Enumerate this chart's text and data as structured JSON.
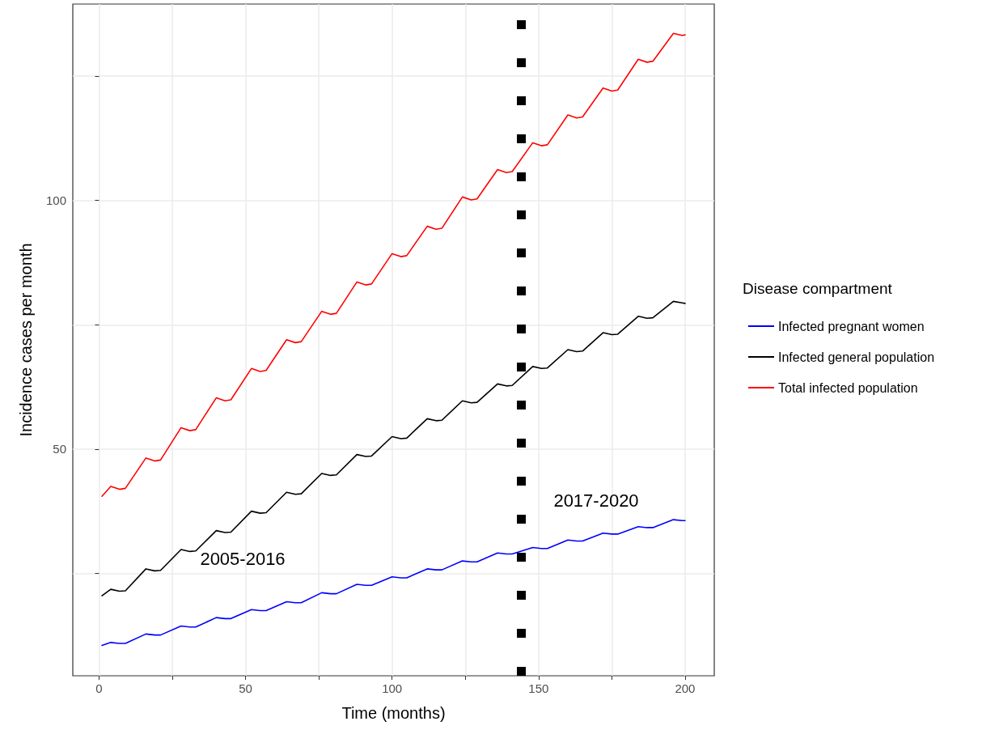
{
  "chart_data": {
    "type": "line",
    "xlabel": "Time (months)",
    "ylabel": "Incidence cases per month",
    "legend_title": "Disease compartment",
    "x": [
      1,
      4,
      7,
      9,
      16,
      19,
      21,
      28,
      31,
      33,
      40,
      43,
      45,
      52,
      55,
      57,
      64,
      67,
      69,
      76,
      79,
      81,
      88,
      91,
      93,
      100,
      103,
      105,
      112,
      115,
      117,
      124,
      127,
      129,
      136,
      139,
      141,
      148,
      151,
      153,
      160,
      163,
      165,
      172,
      175,
      177,
      184,
      187,
      189,
      196,
      199,
      200
    ],
    "series": [
      {
        "name": "Infected pregnant women",
        "color": "#0000ff",
        "values": [
          10.5,
          11.1,
          10.9,
          10.9,
          12.8,
          12.6,
          12.6,
          14.4,
          14.2,
          14.2,
          16.1,
          15.9,
          15.9,
          17.7,
          17.5,
          17.5,
          19.3,
          19.1,
          19.1,
          21.1,
          20.9,
          20.9,
          22.8,
          22.6,
          22.6,
          24.3,
          24.1,
          24.1,
          25.9,
          25.7,
          25.7,
          27.5,
          27.3,
          27.3,
          29.1,
          28.9,
          28.9,
          30.2,
          30,
          30,
          31.7,
          31.5,
          31.5,
          33.1,
          32.9,
          32.9,
          34.4,
          34.2,
          34.2,
          35.8,
          35.6,
          35.6
        ]
      },
      {
        "name": "Infected general population",
        "color": "#000000",
        "values": [
          20.5,
          21.8,
          21.4,
          21.5,
          25.9,
          25.5,
          25.6,
          29.8,
          29.4,
          29.5,
          33.6,
          33.2,
          33.3,
          37.5,
          37.1,
          37.2,
          41.3,
          40.9,
          41,
          45.1,
          44.7,
          44.8,
          48.9,
          48.5,
          48.6,
          52.5,
          52.1,
          52.2,
          56.1,
          55.7,
          55.8,
          59.7,
          59.3,
          59.4,
          63.1,
          62.7,
          62.8,
          66.6,
          66.2,
          66.3,
          70,
          69.6,
          69.7,
          73.4,
          73,
          73.1,
          76.7,
          76.3,
          76.4,
          79.7,
          79.4,
          79.3
        ]
      },
      {
        "name": "Total infected population",
        "color": "#ff0000",
        "values": [
          40.5,
          42.5,
          41.9,
          42.1,
          48.2,
          47.6,
          47.8,
          54.3,
          53.7,
          53.9,
          60.3,
          59.7,
          59.9,
          66.2,
          65.6,
          65.8,
          72,
          71.4,
          71.6,
          77.7,
          77.1,
          77.3,
          83.6,
          83,
          83.2,
          89.3,
          88.7,
          88.9,
          94.8,
          94.2,
          94.4,
          100.7,
          100.1,
          100.3,
          106.2,
          105.6,
          105.8,
          111.6,
          111,
          111.2,
          117.2,
          116.6,
          116.8,
          122.6,
          122,
          122.2,
          128.4,
          127.8,
          128,
          133.6,
          133.2,
          133.3
        ]
      }
    ],
    "xlim": [
      -8.95,
      209.95
    ],
    "xticks": [
      0,
      {
        "value": 25,
        "label": null
      },
      50,
      {
        "value": 75,
        "label": null
      },
      100,
      {
        "value": 125,
        "label": null
      },
      150,
      {
        "value": 175,
        "label": null
      },
      200
    ],
    "ylim": [
      4.4,
      139.5
    ],
    "yticks": [
      {
        "value": 25,
        "label": null
      },
      50,
      {
        "value": 75,
        "label": null
      },
      100,
      {
        "value": 125,
        "label": null
      }
    ],
    "ref_lines": [
      {
        "axis": "x",
        "value": 144,
        "color": "#000000",
        "line_style": "dotted"
      }
    ],
    "annotations": [
      "2005-2016",
      "2017-2020"
    ],
    "grid": true,
    "legend": "right",
    "marker": "none",
    "line_style": "solid"
  }
}
